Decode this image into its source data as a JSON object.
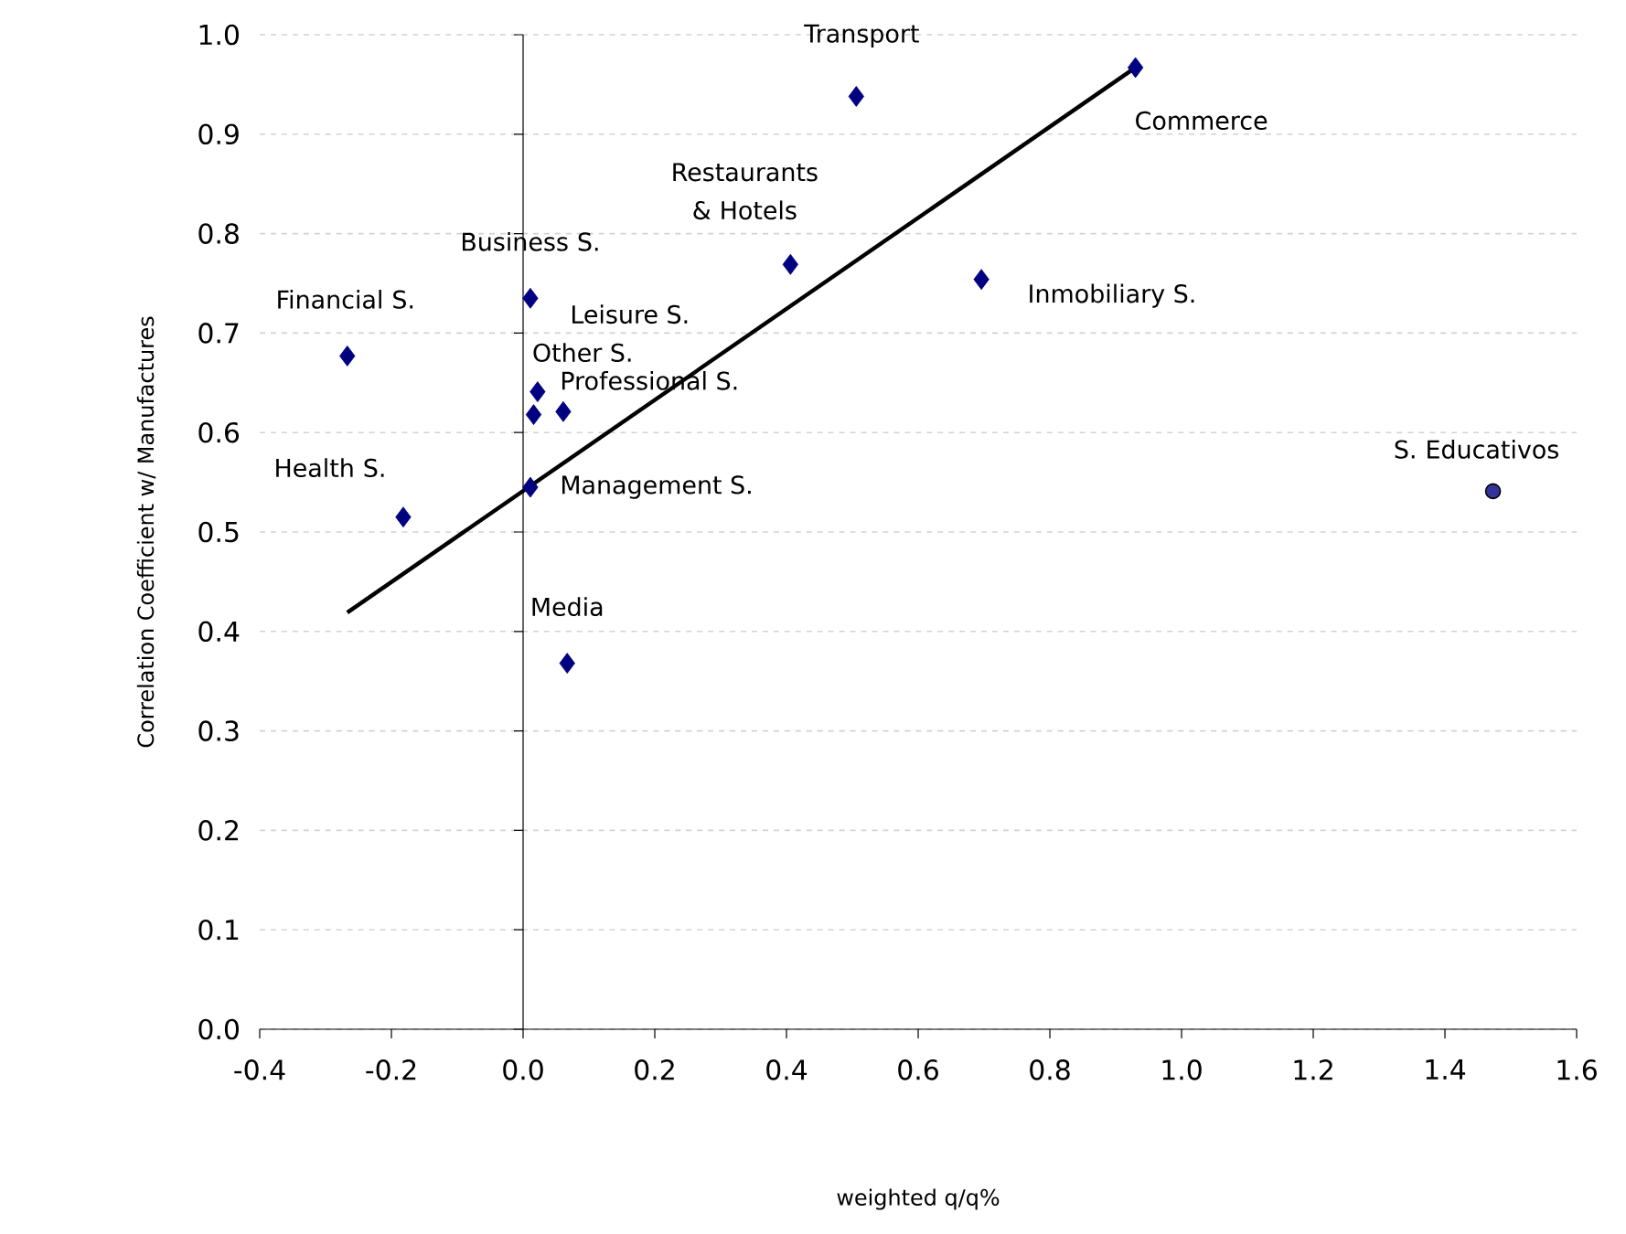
{
  "chart_data": {
    "type": "scatter",
    "xlabel": "weighted q/q%",
    "ylabel": "Correlation Coefficient w/ Manufactures",
    "xlim": [
      -0.4,
      1.6
    ],
    "ylim": [
      0,
      1
    ],
    "xticks": [
      -0.4,
      -0.2,
      {
        "value": 0,
        "label": "0.0"
      },
      0.2,
      0.4,
      0.6,
      0.8,
      {
        "value": 1,
        "label": "1.0"
      },
      1.2,
      1.4,
      1.6
    ],
    "yticks": [
      {
        "value": 0,
        "label": "0.0"
      },
      0.1,
      0.2,
      0.3,
      0.4,
      0.5,
      0.6,
      0.7,
      0.8,
      0.9,
      {
        "value": 1,
        "label": "1.0"
      }
    ],
    "grid": "y",
    "series": [
      {
        "marker": "diamond",
        "color": "#000080",
        "x": [
          0.506,
          0.93,
          0.406,
          0.011,
          -0.267,
          0.016,
          0.022,
          0.061,
          0.011,
          -0.182,
          0.067,
          0.696
        ],
        "values": [
          0.938,
          0.967,
          0.769,
          0.735,
          0.677,
          0.618,
          0.641,
          0.621,
          0.545,
          0.515,
          0.368,
          0.754
        ]
      },
      {
        "marker": "circle",
        "color": "#333399",
        "x": [
          1.473
        ],
        "values": [
          0.541
        ]
      },
      {
        "type": "line",
        "marker": "none",
        "line_style": "solid",
        "color": "#000000",
        "x": [
          -0.267,
          0.93
        ],
        "values": [
          0.419,
          0.967
        ]
      }
    ],
    "annotations": [
      {
        "text": "Transport",
        "x": 0.506,
        "y": 0.938
      },
      {
        "text": "Commerce",
        "x": 0.93,
        "y": 0.967
      },
      {
        "text": "Restaurants & Hotels",
        "x": 0.406,
        "y": 0.769
      },
      {
        "text": "Business S.",
        "x": 0.011,
        "y": 0.735
      },
      {
        "text": "Financial S.",
        "x": -0.267,
        "y": 0.677
      },
      "Leisure S.",
      {
        "text": "Other S.",
        "x": 0.016,
        "y": 0.618
      },
      {
        "text": "Professional S.",
        "x": 0.061,
        "y": 0.621
      },
      {
        "text": "Management S.",
        "x": 0.011,
        "y": 0.545
      },
      {
        "text": "Health S.",
        "x": -0.182,
        "y": 0.515
      },
      {
        "text": "Media",
        "x": 0.067,
        "y": 0.368
      },
      {
        "text": "Inmobiliary S.",
        "x": 0.696,
        "y": 0.754
      },
      {
        "text": "S. Educativos",
        "x": 1.473,
        "y": 0.541
      }
    ]
  }
}
